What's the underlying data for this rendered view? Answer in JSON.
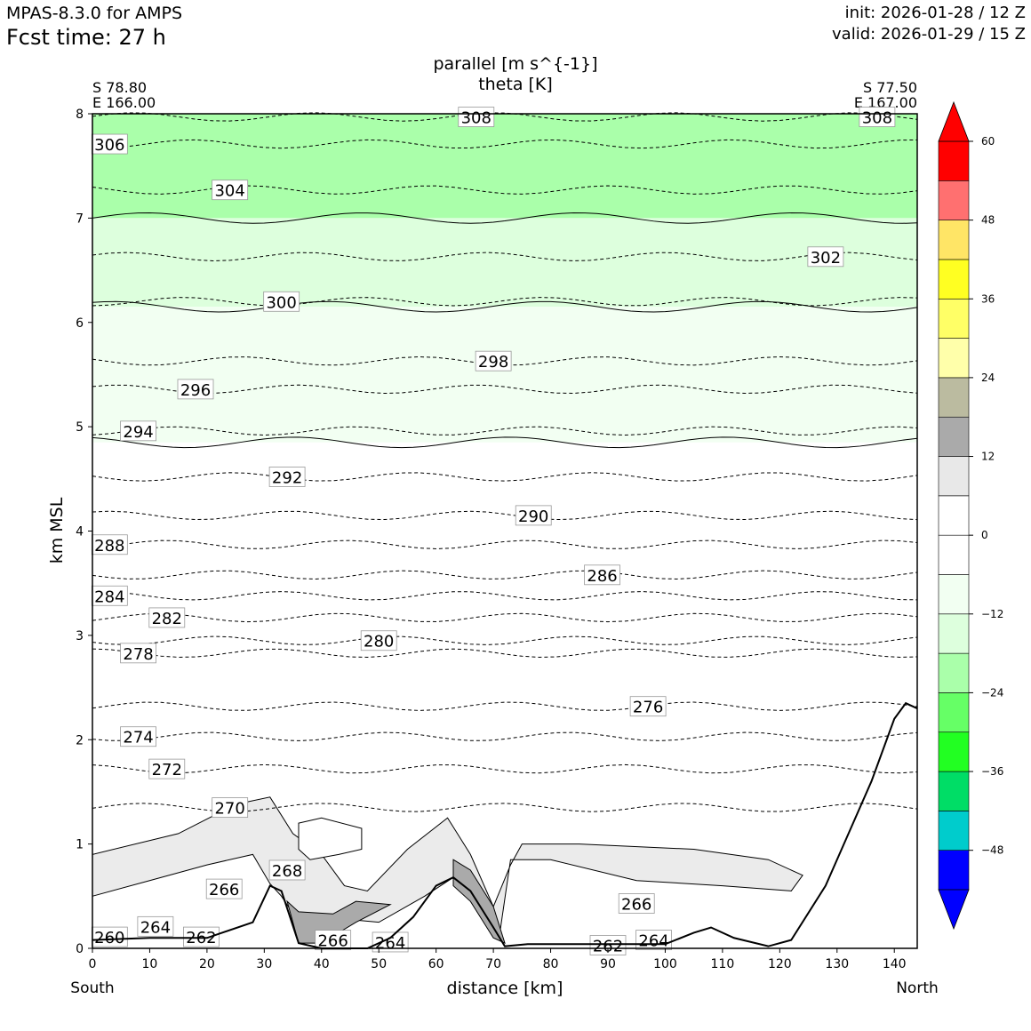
{
  "header": {
    "model": "MPAS-8.3.0 for AMPS",
    "fcst_time": "Fcst time:   27 h",
    "init": "init: 2026-01-28 / 12 Z",
    "valid": "valid: 2026-01-29 / 15 Z"
  },
  "chart_data": {
    "type": "cross-section contour",
    "title_line1": "parallel [m s^{-1}]",
    "title_line2": "theta [K]",
    "xlabel": "distance [km]",
    "ylabel": "km MSL",
    "xlim": [
      0,
      144
    ],
    "ylim": [
      0,
      8
    ],
    "xticks": [
      0,
      10,
      20,
      30,
      40,
      50,
      60,
      70,
      80,
      90,
      100,
      110,
      120,
      130,
      140
    ],
    "yticks": [
      0,
      1,
      2,
      3,
      4,
      5,
      6,
      7,
      8
    ],
    "left_endpoint": {
      "lat": "S 78.80",
      "lon": "E 166.00",
      "label": "South"
    },
    "right_endpoint": {
      "lat": "S 77.50",
      "lon": "E 167.00",
      "label": "North"
    },
    "colorbar": {
      "levels": [
        -54,
        -48,
        -42,
        -36,
        -30,
        -24,
        -18,
        -12,
        -6,
        0,
        6,
        12,
        18,
        24,
        30,
        36,
        42,
        48,
        54,
        60
      ],
      "colors": [
        "#0000ff",
        "#00cccc",
        "#00dd66",
        "#22ff22",
        "#66ff66",
        "#aaffaa",
        "#ddffdd",
        "#f2fff2",
        "#ffffff",
        "#ffffff",
        "#e8e8e8",
        "#aaaaaa",
        "#bbbba0",
        "#ffffaa",
        "#ffff66",
        "#ffff22",
        "#ffe566",
        "#ff7070",
        "#ff0000"
      ],
      "tick_values": [
        60,
        48,
        36,
        24,
        12,
        0,
        -12,
        -24,
        -36,
        -48
      ],
      "tick_labels": [
        "60",
        "48",
        "36",
        "24",
        "12",
        "0",
        "−12",
        "−24",
        "−36",
        "−48"
      ]
    },
    "speed_bands": [
      {
        "name": "green -24",
        "color": "#aaffaa",
        "from_km": 7.0,
        "to_km": 8.0
      },
      {
        "name": "green -18",
        "color": "#ddffdd",
        "from_km": 6.15,
        "to_km": 7.0
      },
      {
        "name": "green -12",
        "color": "#f2fff2",
        "from_km": 4.85,
        "to_km": 6.15
      }
    ],
    "terrain_km": [
      [
        0,
        0.08
      ],
      [
        10,
        0.1
      ],
      [
        20,
        0.1
      ],
      [
        28,
        0.25
      ],
      [
        31,
        0.6
      ],
      [
        33,
        0.55
      ],
      [
        36,
        0.05
      ],
      [
        40,
        0.0
      ],
      [
        48,
        0.0
      ],
      [
        52,
        0.1
      ],
      [
        56,
        0.3
      ],
      [
        60,
        0.6
      ],
      [
        63,
        0.68
      ],
      [
        66,
        0.55
      ],
      [
        70,
        0.2
      ],
      [
        72,
        0.02
      ],
      [
        76,
        0.04
      ],
      [
        100,
        0.04
      ],
      [
        105,
        0.15
      ],
      [
        108,
        0.2
      ],
      [
        112,
        0.1
      ],
      [
        118,
        0.02
      ],
      [
        122,
        0.08
      ],
      [
        128,
        0.6
      ],
      [
        132,
        1.1
      ],
      [
        136,
        1.6
      ],
      [
        140,
        2.2
      ],
      [
        142,
        2.35
      ],
      [
        144,
        2.3
      ]
    ],
    "theta_contours": [
      {
        "level": 308,
        "labels": [
          [
            67,
            7.97
          ],
          [
            137,
            7.97
          ]
        ]
      },
      {
        "level": 306,
        "labels": [
          [
            3,
            7.71
          ]
        ]
      },
      {
        "level": 304,
        "labels": [
          [
            24,
            7.27
          ]
        ]
      },
      {
        "level": 302,
        "labels": [
          [
            128,
            6.63
          ]
        ]
      },
      {
        "level": 300,
        "labels": [
          [
            33,
            6.2
          ]
        ]
      },
      {
        "level": 298,
        "labels": [
          [
            70,
            5.63
          ]
        ]
      },
      {
        "level": 296,
        "labels": [
          [
            18,
            5.36
          ]
        ]
      },
      {
        "level": 294,
        "labels": [
          [
            8,
            4.96
          ]
        ]
      },
      {
        "level": 292,
        "labels": [
          [
            34,
            4.52
          ]
        ]
      },
      {
        "level": 290,
        "labels": [
          [
            77,
            4.15
          ]
        ]
      },
      {
        "level": 288,
        "labels": [
          [
            3,
            3.87
          ]
        ]
      },
      {
        "level": 286,
        "labels": [
          [
            89,
            3.58
          ]
        ]
      },
      {
        "level": 284,
        "labels": [
          [
            3,
            3.38
          ]
        ]
      },
      {
        "level": 282,
        "labels": [
          [
            13,
            3.17
          ]
        ]
      },
      {
        "level": 280,
        "labels": [
          [
            50,
            2.95
          ]
        ]
      },
      {
        "level": 278,
        "labels": [
          [
            8,
            2.83
          ]
        ]
      },
      {
        "level": 276,
        "labels": [
          [
            97,
            2.32
          ]
        ]
      },
      {
        "level": 274,
        "labels": [
          [
            8,
            2.03
          ]
        ]
      },
      {
        "level": 272,
        "labels": [
          [
            13,
            1.72
          ]
        ]
      },
      {
        "level": 270,
        "labels": [
          [
            24,
            1.35
          ]
        ]
      },
      {
        "level": 268,
        "labels": [
          [
            34,
            0.75
          ]
        ]
      },
      {
        "level": 266,
        "labels": [
          [
            23,
            0.57
          ],
          [
            42,
            0.08
          ],
          [
            95,
            0.43
          ]
        ]
      },
      {
        "level": 264,
        "labels": [
          [
            11,
            0.21
          ],
          [
            52,
            0.06
          ],
          [
            98,
            0.08
          ]
        ]
      },
      {
        "level": 262,
        "labels": [
          [
            19,
            0.11
          ],
          [
            90,
            0.03
          ]
        ]
      },
      {
        "level": 260,
        "labels": [
          [
            3,
            0.11
          ]
        ]
      }
    ]
  }
}
